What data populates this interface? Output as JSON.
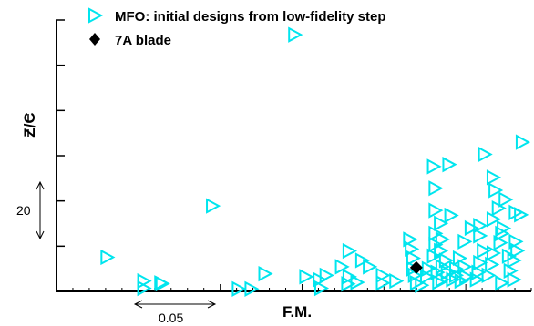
{
  "chart_data": {
    "type": "scatter",
    "xlabel": "F.M.",
    "ylabel_main": "Z/C",
    "x_scale_label": "0.05",
    "y_scale_label": "20",
    "legend": [
      {
        "label": "MFO: initial designs from low-fidelity step",
        "marker": "triangle-right",
        "color": "#00e5ee"
      },
      {
        "label": "7A blade",
        "marker": "diamond",
        "color": "#000000"
      }
    ],
    "xlim": [
      0,
      0.145
    ],
    "ylim": [
      0,
      120
    ],
    "series": [
      {
        "name": "MFO: initial designs from low-fidelity step",
        "marker": "triangle-right",
        "color": "#00e5ee",
        "points": [
          [
            0.0727,
            113.5
          ],
          [
            0.0154,
            15.1
          ],
          [
            0.0266,
            4.6
          ],
          [
            0.0266,
            1.4
          ],
          [
            0.0318,
            3.7
          ],
          [
            0.0322,
            3.4
          ],
          [
            0.0476,
            37.8
          ],
          [
            0.0555,
            1.1
          ],
          [
            0.0594,
            1.1
          ],
          [
            0.0636,
            7.8
          ],
          [
            0.0761,
            6.5
          ],
          [
            0.0802,
            5.2
          ],
          [
            0.0807,
            1.4
          ],
          [
            0.0823,
            7.1
          ],
          [
            0.087,
            10.9
          ],
          [
            0.0893,
            6.5
          ],
          [
            0.0889,
            3.3
          ],
          [
            0.0893,
            17.9
          ],
          [
            0.0917,
            4.0
          ],
          [
            0.0932,
            13.7
          ],
          [
            0.0955,
            10.9
          ],
          [
            0.0995,
            7.1
          ],
          [
            0.0995,
            3.7
          ],
          [
            0.1036,
            4.6
          ],
          [
            0.1078,
            23.0
          ],
          [
            0.1083,
            18.8
          ],
          [
            0.1088,
            14.7
          ],
          [
            0.1088,
            10.0
          ],
          [
            0.1093,
            7.1
          ],
          [
            0.1099,
            3.7
          ],
          [
            0.1114,
            2.7
          ],
          [
            0.113,
            6.5
          ],
          [
            0.1135,
            10.0
          ],
          [
            0.1151,
            15.6
          ],
          [
            0.1156,
            20.7
          ],
          [
            0.1156,
            25.6
          ],
          [
            0.1162,
            8.4
          ],
          [
            0.1167,
            4.0
          ],
          [
            0.1172,
            18.0
          ],
          [
            0.1177,
            10.9
          ],
          [
            0.1177,
            5.2
          ],
          [
            0.1188,
            13.7
          ],
          [
            0.1193,
            8.4
          ],
          [
            0.1151,
            55.2
          ],
          [
            0.1156,
            45.6
          ],
          [
            0.1156,
            35.8
          ],
          [
            0.1172,
            30.1
          ],
          [
            0.1177,
            23.0
          ],
          [
            0.1198,
            56.1
          ],
          [
            0.1204,
            33.6
          ],
          [
            0.1209,
            5.2
          ],
          [
            0.1219,
            10.0
          ],
          [
            0.1219,
            7.1
          ],
          [
            0.123,
            14.7
          ],
          [
            0.1235,
            4.6
          ],
          [
            0.1245,
            10.9
          ],
          [
            0.1245,
            22.0
          ],
          [
            0.125,
            6.5
          ],
          [
            0.1266,
            28.0
          ],
          [
            0.1282,
            5.2
          ],
          [
            0.1287,
            8.4
          ],
          [
            0.1292,
            12.7
          ],
          [
            0.1292,
            24.6
          ],
          [
            0.1292,
            29.1
          ],
          [
            0.1303,
            18.0
          ],
          [
            0.1307,
            60.6
          ],
          [
            0.1318,
            7.1
          ],
          [
            0.1328,
            11.9
          ],
          [
            0.1333,
            16.9
          ],
          [
            0.1333,
            31.9
          ],
          [
            0.1333,
            50.4
          ],
          [
            0.1339,
            44.7
          ],
          [
            0.1349,
            36.8
          ],
          [
            0.1354,
            21.5
          ],
          [
            0.1359,
            25.6
          ],
          [
            0.1359,
            3.7
          ],
          [
            0.1364,
            27.9
          ],
          [
            0.137,
            40.6
          ],
          [
            0.138,
            15.6
          ],
          [
            0.1385,
            9.1
          ],
          [
            0.1396,
            5.2
          ],
          [
            0.1396,
            13.7
          ],
          [
            0.1401,
            22.0
          ],
          [
            0.1401,
            34.9
          ],
          [
            0.1406,
            18.0
          ],
          [
            0.1417,
            33.9
          ],
          [
            0.1422,
            66.0
          ]
        ]
      },
      {
        "name": "7A blade",
        "marker": "diamond",
        "color": "#000000",
        "points": [
          [
            0.1099,
            10.5
          ]
        ]
      }
    ]
  }
}
